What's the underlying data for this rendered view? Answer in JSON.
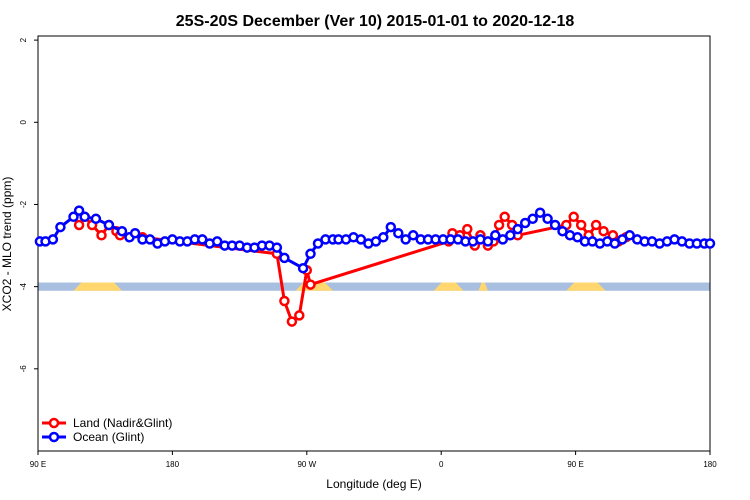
{
  "chart_data": {
    "type": "line",
    "title": "25S-20S December (Ver 10)   2015-01-01 to 2020-12-18",
    "xlabel": "Longitude (deg E)",
    "ylabel": "XCO2 - MLO trend (ppm)",
    "xlim": [
      90,
      450
    ],
    "ylim": [
      -8,
      2.1
    ],
    "x_ticks": [
      90,
      162,
      234,
      306,
      378,
      450
    ],
    "x_tick_labels": [
      "90 E",
      "180",
      "90 W",
      "0",
      "90 E",
      "180"
    ],
    "y_ticks": [
      2,
      0,
      -2,
      -4,
      -6
    ],
    "y_tick_labels": [
      "2",
      "0",
      "-2",
      "-4",
      "-6"
    ],
    "legend_position": "bottom-left",
    "series": [
      {
        "name": "Land (Nadir&Glint)",
        "color": "#ff0000",
        "x": [
          112,
          115,
          119,
          124,
          128,
          132,
          134,
          146,
          218,
          222,
          226,
          230,
          234,
          236,
          310,
          312,
          316,
          320,
          324,
          327,
          331,
          334,
          337,
          340,
          344,
          347,
          373,
          377,
          381,
          385,
          389,
          393,
          398,
          401,
          405
        ],
        "y": [
          -2.5,
          -2.3,
          -2.5,
          -2.75,
          -2.5,
          -2.65,
          -2.75,
          -2.8,
          -3.2,
          -4.35,
          -4.85,
          -4.7,
          -3.6,
          -3.95,
          -2.9,
          -2.7,
          -2.75,
          -2.6,
          -3.0,
          -2.75,
          -3.0,
          -2.9,
          -2.5,
          -2.3,
          -2.5,
          -2.75,
          -2.5,
          -2.3,
          -2.5,
          -2.75,
          -2.5,
          -2.65,
          -2.75,
          -2.9,
          -2.8
        ]
      },
      {
        "name": "Ocean (Glint)",
        "color": "#0000ff",
        "x": [
          91,
          94,
          98,
          102,
          109,
          112,
          115,
          121,
          128,
          135,
          139,
          142,
          146,
          150,
          154,
          158,
          162,
          166,
          170,
          174,
          178,
          182,
          186,
          190,
          194,
          198,
          202,
          206,
          210,
          214,
          218,
          222,
          232,
          236,
          240,
          244,
          248,
          251,
          255,
          259,
          263,
          267,
          271,
          275,
          279,
          283,
          287,
          291,
          295,
          299,
          303,
          307,
          311,
          315,
          319,
          323,
          327,
          331,
          335,
          339,
          343,
          347,
          351,
          355,
          359,
          363,
          367,
          371,
          375,
          379,
          383,
          387,
          391,
          395,
          399,
          403,
          407,
          411,
          415,
          419,
          423,
          427,
          431,
          435,
          439,
          443,
          447,
          450
        ],
        "y": [
          -2.9,
          -2.9,
          -2.85,
          -2.55,
          -2.3,
          -2.15,
          -2.3,
          -2.35,
          -2.5,
          -2.65,
          -2.8,
          -2.7,
          -2.85,
          -2.85,
          -2.95,
          -2.9,
          -2.85,
          -2.9,
          -2.9,
          -2.85,
          -2.85,
          -2.95,
          -2.9,
          -3.0,
          -3.0,
          -3.0,
          -3.05,
          -3.05,
          -3.0,
          -3.0,
          -3.05,
          -3.3,
          -3.55,
          -3.2,
          -2.95,
          -2.85,
          -2.85,
          -2.85,
          -2.85,
          -2.8,
          -2.85,
          -2.95,
          -2.9,
          -2.8,
          -2.55,
          -2.7,
          -2.85,
          -2.75,
          -2.85,
          -2.85,
          -2.85,
          -2.85,
          -2.85,
          -2.85,
          -2.9,
          -2.9,
          -2.85,
          -2.9,
          -2.75,
          -2.85,
          -2.75,
          -2.6,
          -2.45,
          -2.35,
          -2.2,
          -2.35,
          -2.5,
          -2.65,
          -2.75,
          -2.8,
          -2.9,
          -2.9,
          -2.95,
          -2.9,
          -2.95,
          -2.85,
          -2.75,
          -2.85,
          -2.9,
          -2.9,
          -2.95,
          -2.9,
          -2.85,
          -2.9,
          -2.95,
          -2.95,
          -2.95,
          -2.95
        ]
      }
    ],
    "surface_band": {
      "y_range": [
        -4.1,
        -3.9
      ],
      "ocean_color": "#a9bfe0",
      "land_color": "#ffd76e",
      "land_ranges": [
        [
          109,
          135
        ],
        [
          228,
          248
        ],
        [
          302,
          318
        ],
        [
          326,
          331
        ],
        [
          373,
          394
        ]
      ]
    }
  }
}
